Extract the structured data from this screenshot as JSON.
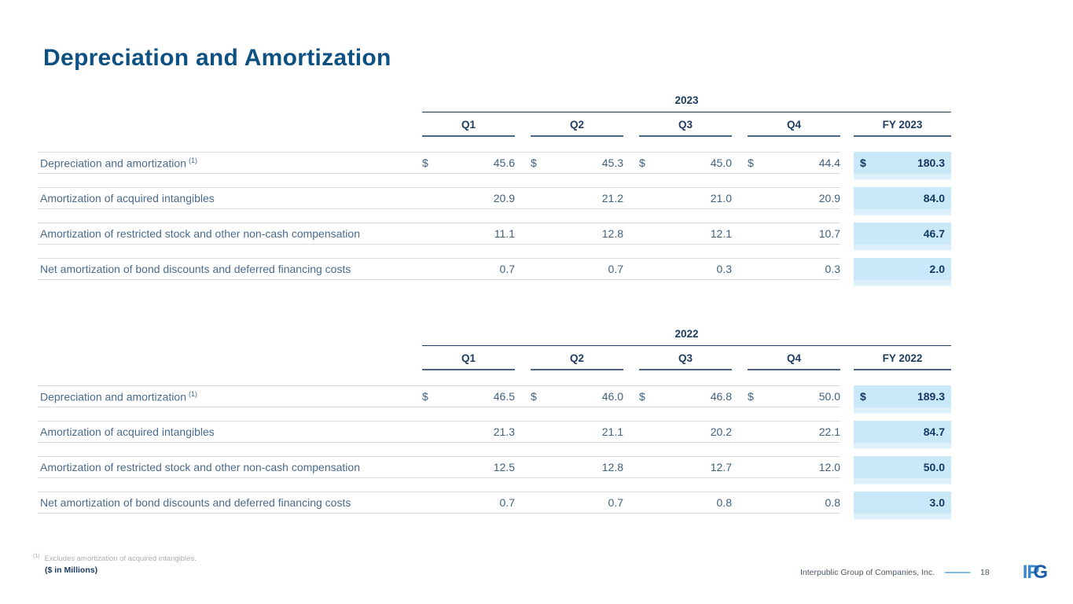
{
  "slide_title": "Depreciation and Amortization",
  "colors": {
    "title": "#0d5183",
    "header_navy": "#1d3c60",
    "body_text": "#4a6b8c",
    "fy_highlight": "#c9e8f8",
    "fy_tint": "#ddeffa",
    "row_line": "#d9dde1",
    "fy_text": "#123a63",
    "footer_dash": "#85b8dc",
    "logo_blue": "#3988cb",
    "logo_dark_blue": "#1d5da9"
  },
  "tables": [
    {
      "year": "2023",
      "quarter_headers": [
        "Q1",
        "Q2",
        "Q3",
        "Q4"
      ],
      "fy_header": "FY 2023",
      "rows": [
        {
          "label": "Depreciation and amortization",
          "footnote_ref": "(1)",
          "q_dollar": "$",
          "values": [
            "45.6",
            "45.3",
            "45.0",
            "44.4"
          ],
          "fy_dollar": "$",
          "fy_value": "180.3"
        },
        {
          "label": "Amortization of acquired intangibles",
          "values": [
            "20.9",
            "21.2",
            "21.0",
            "20.9"
          ],
          "fy_value": "84.0"
        },
        {
          "label": "Amortization of restricted stock and other non-cash compensation",
          "values": [
            "11.1",
            "12.8",
            "12.1",
            "10.7"
          ],
          "fy_value": "46.7"
        },
        {
          "label": "Net amortization of bond discounts and deferred financing costs",
          "values": [
            "0.7",
            "0.7",
            "0.3",
            "0.3"
          ],
          "fy_value": "2.0"
        }
      ]
    },
    {
      "year": "2022",
      "quarter_headers": [
        "Q1",
        "Q2",
        "Q3",
        "Q4"
      ],
      "fy_header": "FY 2022",
      "rows": [
        {
          "label": "Depreciation and amortization",
          "footnote_ref": "(1)",
          "q_dollar": "$",
          "values": [
            "46.5",
            "46.0",
            "46.8",
            "50.0"
          ],
          "fy_dollar": "$",
          "fy_value": "189.3"
        },
        {
          "label": "Amortization of acquired intangibles",
          "values": [
            "21.3",
            "21.1",
            "20.2",
            "22.1"
          ],
          "fy_value": "84.7"
        },
        {
          "label": "Amortization of restricted stock and other non-cash compensation",
          "values": [
            "12.5",
            "12.8",
            "12.7",
            "12.0"
          ],
          "fy_value": "50.0"
        },
        {
          "label": "Net amortization of bond discounts and deferred financing costs",
          "values": [
            "0.7",
            "0.7",
            "0.8",
            "0.8"
          ],
          "fy_value": "3.0"
        }
      ]
    }
  ],
  "footnote": {
    "marker": "(1)",
    "text": "Excludes amortization of acquired intangibles.",
    "units": "($ in Millions)"
  },
  "footer": {
    "company": "Interpublic Group of Companies, Inc.",
    "page": "18",
    "logo_ip": "IP",
    "logo_g": "G"
  }
}
